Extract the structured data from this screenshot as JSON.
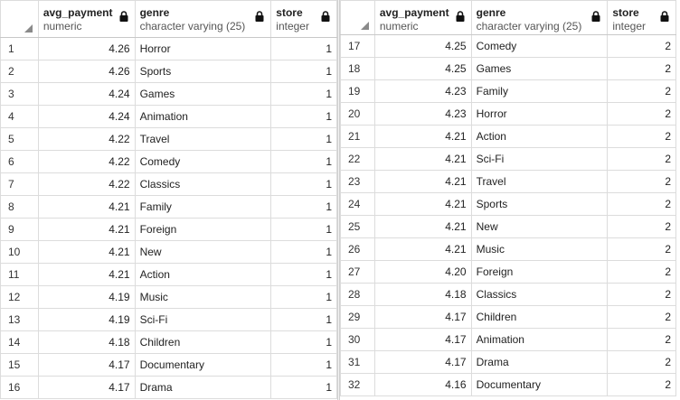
{
  "columns": [
    {
      "name": "avg_payment",
      "type": "numeric"
    },
    {
      "name": "genre",
      "type": "character varying (25)"
    },
    {
      "name": "store",
      "type": "integer"
    }
  ],
  "left_rows": [
    {
      "n": "1",
      "avg_payment": "4.26",
      "genre": "Horror",
      "store": "1"
    },
    {
      "n": "2",
      "avg_payment": "4.26",
      "genre": "Sports",
      "store": "1"
    },
    {
      "n": "3",
      "avg_payment": "4.24",
      "genre": "Games",
      "store": "1"
    },
    {
      "n": "4",
      "avg_payment": "4.24",
      "genre": "Animation",
      "store": "1"
    },
    {
      "n": "5",
      "avg_payment": "4.22",
      "genre": "Travel",
      "store": "1"
    },
    {
      "n": "6",
      "avg_payment": "4.22",
      "genre": "Comedy",
      "store": "1"
    },
    {
      "n": "7",
      "avg_payment": "4.22",
      "genre": "Classics",
      "store": "1"
    },
    {
      "n": "8",
      "avg_payment": "4.21",
      "genre": "Family",
      "store": "1"
    },
    {
      "n": "9",
      "avg_payment": "4.21",
      "genre": "Foreign",
      "store": "1"
    },
    {
      "n": "10",
      "avg_payment": "4.21",
      "genre": "New",
      "store": "1"
    },
    {
      "n": "11",
      "avg_payment": "4.21",
      "genre": "Action",
      "store": "1"
    },
    {
      "n": "12",
      "avg_payment": "4.19",
      "genre": "Music",
      "store": "1"
    },
    {
      "n": "13",
      "avg_payment": "4.19",
      "genre": "Sci-Fi",
      "store": "1"
    },
    {
      "n": "14",
      "avg_payment": "4.18",
      "genre": "Children",
      "store": "1"
    },
    {
      "n": "15",
      "avg_payment": "4.17",
      "genre": "Documentary",
      "store": "1"
    },
    {
      "n": "16",
      "avg_payment": "4.17",
      "genre": "Drama",
      "store": "1"
    }
  ],
  "right_rows": [
    {
      "n": "17",
      "avg_payment": "4.25",
      "genre": "Comedy",
      "store": "2"
    },
    {
      "n": "18",
      "avg_payment": "4.25",
      "genre": "Games",
      "store": "2"
    },
    {
      "n": "19",
      "avg_payment": "4.23",
      "genre": "Family",
      "store": "2"
    },
    {
      "n": "20",
      "avg_payment": "4.23",
      "genre": "Horror",
      "store": "2"
    },
    {
      "n": "21",
      "avg_payment": "4.21",
      "genre": "Action",
      "store": "2"
    },
    {
      "n": "22",
      "avg_payment": "4.21",
      "genre": "Sci-Fi",
      "store": "2"
    },
    {
      "n": "23",
      "avg_payment": "4.21",
      "genre": "Travel",
      "store": "2"
    },
    {
      "n": "24",
      "avg_payment": "4.21",
      "genre": "Sports",
      "store": "2"
    },
    {
      "n": "25",
      "avg_payment": "4.21",
      "genre": "New",
      "store": "2"
    },
    {
      "n": "26",
      "avg_payment": "4.21",
      "genre": "Music",
      "store": "2"
    },
    {
      "n": "27",
      "avg_payment": "4.20",
      "genre": "Foreign",
      "store": "2"
    },
    {
      "n": "28",
      "avg_payment": "4.18",
      "genre": "Classics",
      "store": "2"
    },
    {
      "n": "29",
      "avg_payment": "4.17",
      "genre": "Children",
      "store": "2"
    },
    {
      "n": "30",
      "avg_payment": "4.17",
      "genre": "Animation",
      "store": "2"
    },
    {
      "n": "31",
      "avg_payment": "4.17",
      "genre": "Drama",
      "store": "2"
    },
    {
      "n": "32",
      "avg_payment": "4.16",
      "genre": "Documentary",
      "store": "2"
    }
  ],
  "icons": {
    "column_lock": "lock-icon",
    "corner": "select-all-corner"
  }
}
